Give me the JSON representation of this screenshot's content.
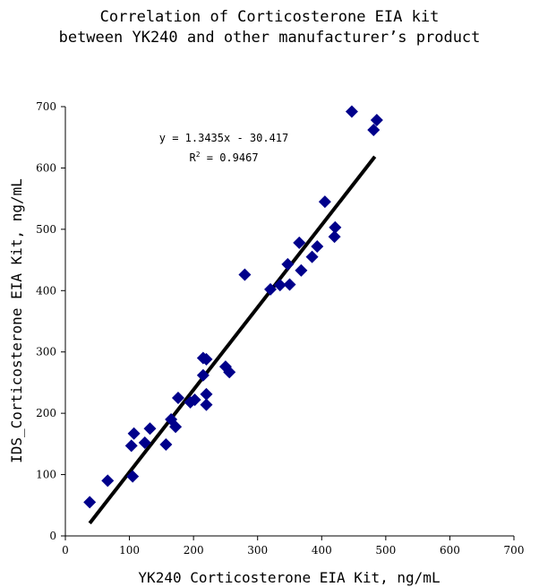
{
  "chart_data": {
    "type": "scatter",
    "title": "Correlation of Corticosterone EIA kit",
    "subtitle": "between YK240 and other manufacturer’s product",
    "xlabel": "YK240 Corticosterone EIA Kit, ng/mL",
    "ylabel": "IDS_Corticosterone EIA Kit, ng/mL",
    "xlim": [
      0,
      700
    ],
    "ylim": [
      0,
      700
    ],
    "xticks": [
      "0",
      "100",
      "200",
      "300",
      "400",
      "500",
      "600",
      "700"
    ],
    "yticks": [
      "0",
      "100",
      "200",
      "300",
      "400",
      "500",
      "600",
      "700"
    ],
    "grid": false,
    "marker_color": "#00008b",
    "trendline": {
      "equation": "y = 1.3435x - 30.417",
      "r2_prefix": "R",
      "r2_sup": "2",
      "r2_value": " = 0.9467",
      "slope": 1.3435,
      "intercept": -30.417,
      "x_range": [
        38,
        483
      ]
    },
    "points": [
      {
        "x": 38,
        "y": 55
      },
      {
        "x": 66,
        "y": 90
      },
      {
        "x": 105,
        "y": 97
      },
      {
        "x": 103,
        "y": 147
      },
      {
        "x": 107,
        "y": 167
      },
      {
        "x": 124,
        "y": 152
      },
      {
        "x": 132,
        "y": 175
      },
      {
        "x": 157,
        "y": 149
      },
      {
        "x": 165,
        "y": 190
      },
      {
        "x": 172,
        "y": 178
      },
      {
        "x": 176,
        "y": 225
      },
      {
        "x": 195,
        "y": 218
      },
      {
        "x": 202,
        "y": 222
      },
      {
        "x": 215,
        "y": 262
      },
      {
        "x": 215,
        "y": 290
      },
      {
        "x": 220,
        "y": 288
      },
      {
        "x": 220,
        "y": 231
      },
      {
        "x": 220,
        "y": 214
      },
      {
        "x": 250,
        "y": 276
      },
      {
        "x": 256,
        "y": 267
      },
      {
        "x": 280,
        "y": 426
      },
      {
        "x": 320,
        "y": 402
      },
      {
        "x": 335,
        "y": 409
      },
      {
        "x": 347,
        "y": 443
      },
      {
        "x": 350,
        "y": 410
      },
      {
        "x": 365,
        "y": 478
      },
      {
        "x": 368,
        "y": 433
      },
      {
        "x": 385,
        "y": 455
      },
      {
        "x": 393,
        "y": 472
      },
      {
        "x": 405,
        "y": 545
      },
      {
        "x": 420,
        "y": 488
      },
      {
        "x": 421,
        "y": 503
      },
      {
        "x": 447,
        "y": 692
      },
      {
        "x": 481,
        "y": 662
      },
      {
        "x": 486,
        "y": 678
      }
    ]
  }
}
